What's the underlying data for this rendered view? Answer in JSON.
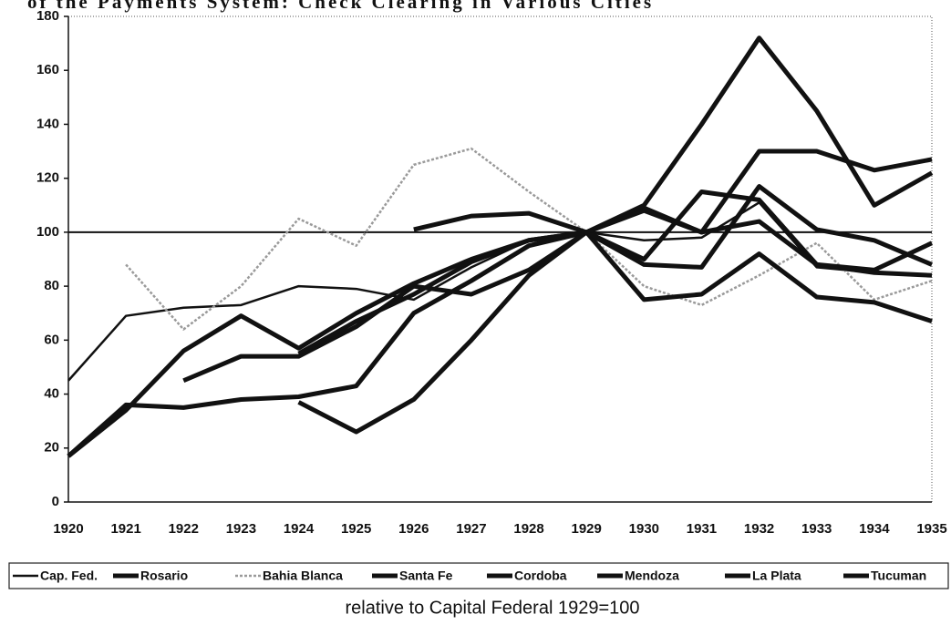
{
  "chart_data": {
    "type": "line",
    "title": "of the Payments System: Check Clearing in Various Cities",
    "note": "relative to Capital Federal 1929=100",
    "categories": [
      "1920",
      "1921",
      "1922",
      "1923",
      "1924",
      "1925",
      "1926",
      "1927",
      "1928",
      "1929",
      "1930",
      "1931",
      "1932",
      "1933",
      "1934",
      "1935"
    ],
    "ylim": [
      0,
      180
    ],
    "yticks": [
      0,
      20,
      40,
      60,
      80,
      100,
      120,
      140,
      160,
      180
    ],
    "reference_line": 100,
    "series": [
      {
        "name": "Cap. Fed.",
        "color": "#111111",
        "values": [
          45,
          69,
          72,
          73,
          80,
          79,
          75,
          87,
          97,
          100,
          97,
          98,
          111,
          87,
          85,
          84
        ]
      },
      {
        "name": "Rosario",
        "color": "#111111",
        "values": [
          17,
          36,
          35,
          38,
          39,
          43,
          70,
          82,
          95,
          100,
          109,
          100,
          130,
          130,
          123,
          127
        ]
      },
      {
        "name": "Bahia Blanca",
        "color": "#9a9a9a",
        "values": [
          null,
          88,
          64,
          80,
          105,
          95,
          125,
          131,
          115,
          100,
          80,
          73,
          84,
          96,
          75,
          82
        ]
      },
      {
        "name": "Santa Fe",
        "color": "#111111",
        "values": [
          null,
          null,
          45,
          54,
          54,
          65,
          80,
          77,
          86,
          100,
          110,
          140,
          172,
          145,
          110,
          122
        ]
      },
      {
        "name": "Cordoba",
        "color": "#111111",
        "values": [
          null,
          null,
          null,
          null,
          37,
          26,
          38,
          60,
          84,
          100,
          75,
          77,
          92,
          76,
          74,
          67
        ]
      },
      {
        "name": "Mendoza",
        "color": "#111111",
        "values": [
          17,
          34,
          56,
          69,
          57,
          70,
          81,
          90,
          97,
          100,
          88,
          87,
          117,
          101,
          97,
          88
        ]
      },
      {
        "name": "La Plata",
        "color": "#111111",
        "values": [
          null,
          null,
          null,
          null,
          55,
          67,
          77,
          89,
          97,
          100,
          90,
          115,
          112,
          88,
          86,
          96
        ]
      },
      {
        "name": "Tucuman",
        "color": "#111111",
        "values": [
          null,
          null,
          null,
          null,
          null,
          null,
          101,
          106,
          107,
          100,
          108,
          100,
          104,
          88,
          85,
          84
        ]
      }
    ]
  }
}
